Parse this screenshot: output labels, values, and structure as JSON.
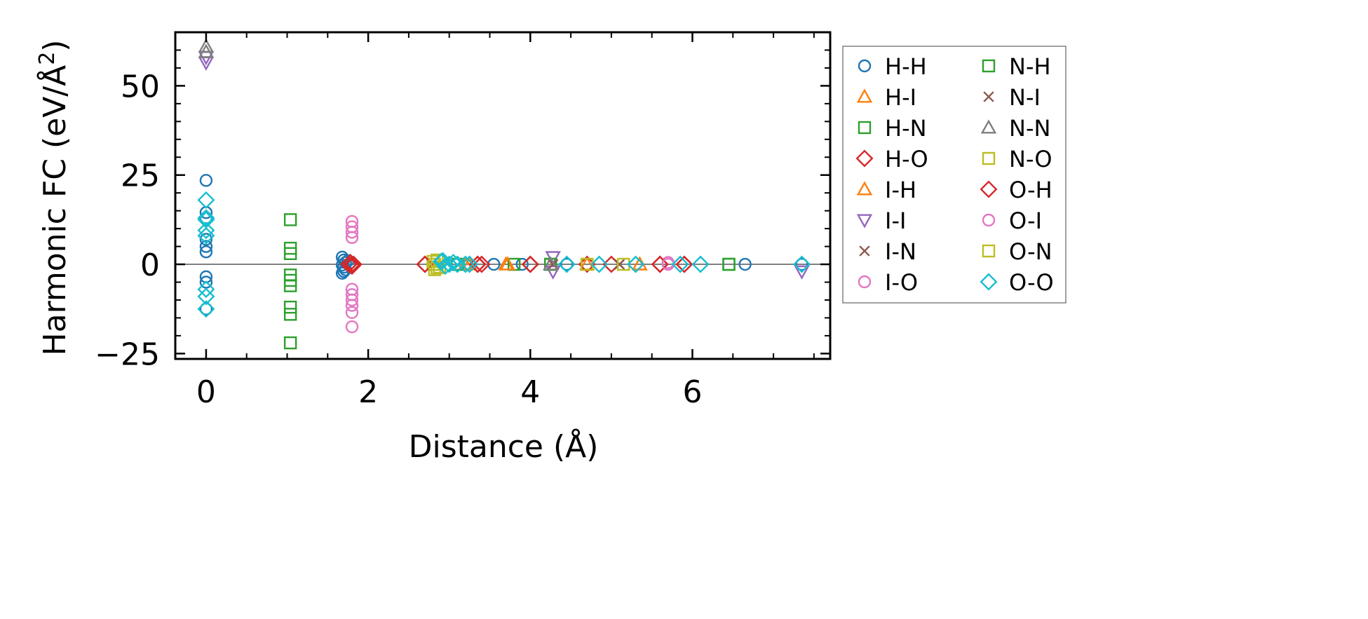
{
  "chart_data": {
    "type": "scatter",
    "title": "",
    "xlabel": "Distance (Å)",
    "ylabel_main": "Harmonic FC (eV/Å",
    "ylabel_sup": "2",
    "ylabel_close": ")",
    "xlim": [
      -0.38,
      7.7
    ],
    "ylim": [
      -26.5,
      65
    ],
    "xticks": [
      0,
      2,
      4,
      6
    ],
    "xtick_labels": [
      "0",
      "2",
      "4",
      "6"
    ],
    "x_minor_ticks": [
      0.5,
      1,
      1.5,
      2.5,
      3,
      3.5,
      4.5,
      5,
      5.5,
      6.5,
      7,
      7.5
    ],
    "yticks": [
      -25,
      0,
      25,
      50
    ],
    "ytick_labels": [
      "−25",
      "0",
      "25",
      "50"
    ],
    "y_minor_ticks": [
      -20,
      -15,
      -10,
      -5,
      5,
      10,
      15,
      20,
      30,
      35,
      40,
      45,
      55,
      60
    ],
    "zero_line": 0,
    "legend_position": "outside-right",
    "series": [
      {
        "name": "H-H",
        "marker": "circle",
        "color": "#1f77b4",
        "points": [
          [
            0,
            23.5
          ],
          [
            0,
            14.5
          ],
          [
            0,
            13
          ],
          [
            0,
            7
          ],
          [
            0,
            5
          ],
          [
            0,
            3.5
          ],
          [
            0,
            -3.5
          ],
          [
            0,
            -5
          ],
          [
            0,
            -12.5
          ],
          [
            1.68,
            2
          ],
          [
            1.7,
            1.2
          ],
          [
            1.72,
            0.5
          ],
          [
            1.68,
            -0.2
          ],
          [
            1.7,
            -0.8
          ],
          [
            1.72,
            -1.5
          ],
          [
            1.68,
            -2.5
          ],
          [
            1.75,
            1
          ],
          [
            1.7,
            -2
          ],
          [
            3.55,
            0
          ],
          [
            3.9,
            0
          ],
          [
            4.45,
            0
          ],
          [
            6.65,
            0
          ],
          [
            7.35,
            0
          ]
        ]
      },
      {
        "name": "H-I",
        "marker": "triangle-up",
        "color": "#ff7f0e",
        "points": [
          [
            3.7,
            0
          ],
          [
            3.25,
            0
          ],
          [
            4.7,
            0
          ],
          [
            5.35,
            0
          ]
        ]
      },
      {
        "name": "H-N",
        "marker": "square",
        "color": "#2ca02c",
        "points": [
          [
            1.04,
            12.5
          ],
          [
            1.04,
            4.5
          ],
          [
            1.04,
            3
          ],
          [
            1.04,
            -3
          ],
          [
            1.04,
            -4.5
          ],
          [
            1.04,
            -6
          ],
          [
            1.04,
            -12
          ],
          [
            1.04,
            -14
          ],
          [
            1.04,
            -22
          ],
          [
            3.1,
            0
          ],
          [
            3.8,
            0
          ],
          [
            4.25,
            0
          ],
          [
            6.45,
            0
          ]
        ]
      },
      {
        "name": "H-O",
        "marker": "diamond",
        "color": "#d62728",
        "points": [
          [
            1.78,
            0.5
          ],
          [
            1.8,
            -0.5
          ],
          [
            1.76,
            0
          ],
          [
            1.82,
            0
          ],
          [
            2.7,
            0
          ],
          [
            3.35,
            0
          ],
          [
            3.4,
            0
          ],
          [
            4.0,
            0
          ],
          [
            4.7,
            0
          ],
          [
            5.0,
            0
          ],
          [
            5.6,
            0
          ],
          [
            5.9,
            0
          ]
        ]
      },
      {
        "name": "I-H",
        "marker": "triangle-up",
        "color": "#ff7f0e",
        "points": [
          [
            3.2,
            0
          ],
          [
            3.72,
            0
          ],
          [
            5.35,
            0
          ]
        ]
      },
      {
        "name": "I-I",
        "marker": "triangle-down",
        "color": "#9467bd",
        "points": [
          [
            0,
            58
          ],
          [
            0,
            56.5
          ],
          [
            4.28,
            2
          ],
          [
            4.28,
            -2
          ],
          [
            7.35,
            -2
          ]
        ]
      },
      {
        "name": "I-N",
        "marker": "x",
        "color": "#8c564b",
        "points": [
          [
            4.28,
            0
          ],
          [
            5.1,
            0
          ]
        ]
      },
      {
        "name": "I-O",
        "marker": "circle",
        "color": "#e377c2",
        "points": [
          [
            1.8,
            12
          ],
          [
            1.8,
            10.5
          ],
          [
            1.8,
            9
          ],
          [
            1.8,
            7.5
          ],
          [
            1.8,
            -7
          ],
          [
            1.8,
            -8.5
          ],
          [
            1.8,
            -10
          ],
          [
            1.8,
            -11.5
          ],
          [
            1.8,
            -13.5
          ],
          [
            1.8,
            -17.5
          ],
          [
            5.7,
            0.5
          ]
        ]
      },
      {
        "name": "N-H",
        "marker": "square",
        "color": "#2ca02c",
        "points": [
          [
            3.1,
            0
          ],
          [
            4.25,
            0
          ],
          [
            6.45,
            0
          ]
        ]
      },
      {
        "name": "N-I",
        "marker": "x",
        "color": "#8c564b",
        "points": [
          [
            4.28,
            0
          ],
          [
            5.1,
            0
          ]
        ]
      },
      {
        "name": "N-N",
        "marker": "triangle-up",
        "color": "#7f7f7f",
        "points": [
          [
            0,
            61
          ],
          [
            0,
            59.5
          ],
          [
            4.25,
            0
          ]
        ]
      },
      {
        "name": "N-O",
        "marker": "square",
        "color": "#bcbd22",
        "points": [
          [
            2.8,
            0
          ],
          [
            2.82,
            -1.5
          ],
          [
            2.85,
            1.2
          ],
          [
            2.88,
            -0.8
          ],
          [
            2.8,
            0.8
          ],
          [
            4.7,
            0
          ],
          [
            5.15,
            0
          ]
        ]
      },
      {
        "name": "O-H",
        "marker": "diamond",
        "color": "#d62728",
        "points": [
          [
            1.8,
            0
          ],
          [
            2.7,
            0
          ],
          [
            3.35,
            0
          ],
          [
            4.0,
            0
          ],
          [
            5.6,
            0
          ],
          [
            5.9,
            0
          ]
        ]
      },
      {
        "name": "O-I",
        "marker": "circle",
        "color": "#e377c2",
        "points": [
          [
            5.7,
            0
          ]
        ]
      },
      {
        "name": "O-N",
        "marker": "square",
        "color": "#bcbd22",
        "points": [
          [
            2.82,
            0
          ],
          [
            2.85,
            -1
          ],
          [
            4.7,
            0
          ]
        ]
      },
      {
        "name": "O-O",
        "marker": "diamond",
        "color": "#17becf",
        "points": [
          [
            0,
            18
          ],
          [
            0,
            13
          ],
          [
            0,
            12.5
          ],
          [
            0,
            9.5
          ],
          [
            0,
            8
          ],
          [
            0,
            -7
          ],
          [
            0,
            -9
          ],
          [
            0,
            -12.5
          ],
          [
            2.9,
            0.8
          ],
          [
            2.95,
            -0.5
          ],
          [
            3.0,
            0
          ],
          [
            2.92,
            1
          ],
          [
            3.05,
            0.5
          ],
          [
            3.1,
            0
          ],
          [
            3.2,
            0
          ],
          [
            3.25,
            0
          ],
          [
            4.45,
            0
          ],
          [
            4.85,
            0
          ],
          [
            5.3,
            0
          ],
          [
            5.85,
            0
          ],
          [
            6.1,
            0
          ],
          [
            7.35,
            0
          ]
        ]
      }
    ]
  }
}
